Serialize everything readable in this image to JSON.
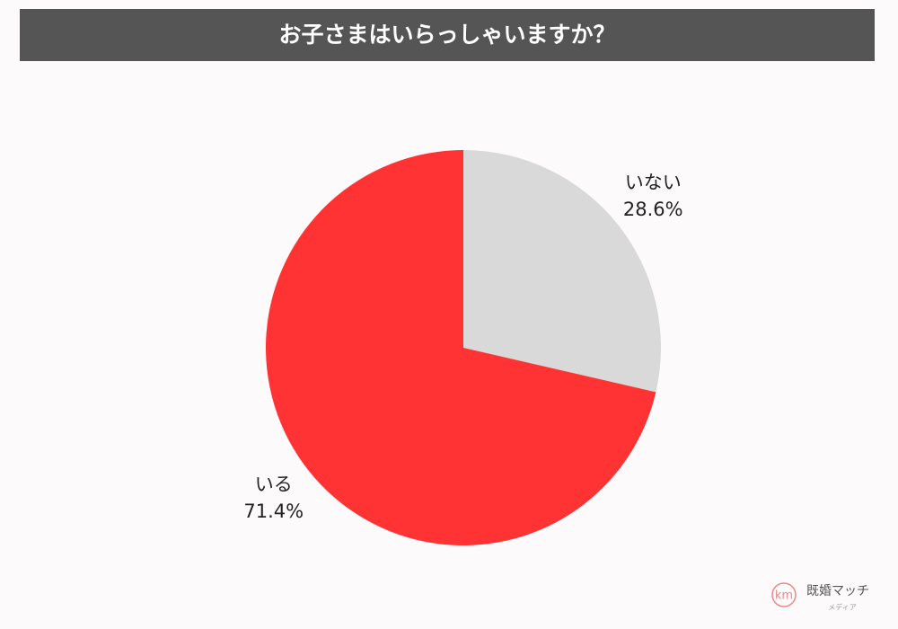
{
  "chart_data": {
    "type": "pie",
    "title": "お子さまはいらっしゃいますか？",
    "categories": [
      "いない",
      "いる"
    ],
    "values": [
      28.6,
      71.4
    ],
    "value_labels": [
      "28.6%",
      "71.4%"
    ],
    "colors": [
      "#d9d9d9",
      "#ff3333"
    ]
  },
  "logo": {
    "name": "既婚マッチ",
    "sub": "メディア"
  }
}
